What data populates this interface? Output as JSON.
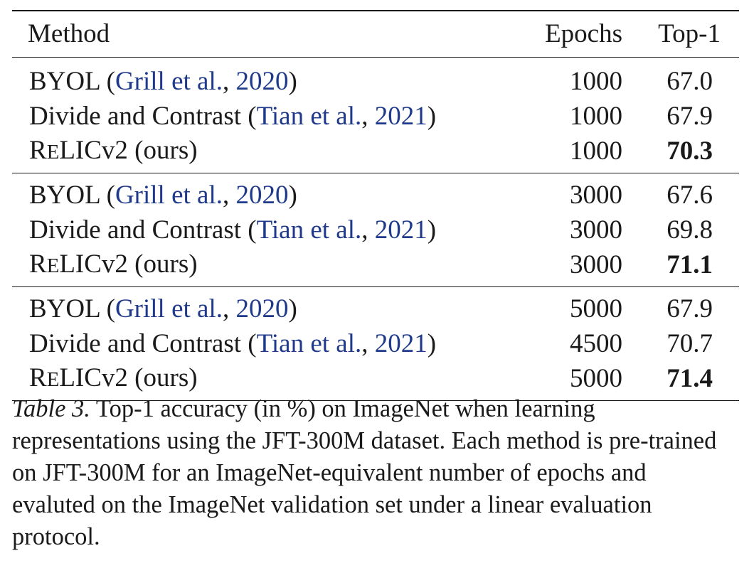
{
  "table": {
    "headers": {
      "method": "Method",
      "epochs": "Epochs",
      "top1": "Top-1"
    },
    "groups": [
      {
        "rows": [
          {
            "name": "BYOL",
            "open": " (",
            "cite_authors": "Grill et al.",
            "sep": ", ",
            "cite_year": "2020",
            "close": ")",
            "epochs": "1000",
            "top1": "67.0",
            "bold": false
          },
          {
            "name": "Divide and Contrast",
            "open": " (",
            "cite_authors": "Tian et al.",
            "sep": ", ",
            "cite_year": "2021",
            "close": ")",
            "epochs": "1000",
            "top1": "67.9",
            "bold": false
          },
          {
            "name_r": "R",
            "name_e": "E",
            "name_rest": "LICv2 (ours)",
            "epochs": "1000",
            "top1": "70.3",
            "bold": true
          }
        ]
      },
      {
        "rows": [
          {
            "name": "BYOL",
            "open": " (",
            "cite_authors": "Grill et al.",
            "sep": ", ",
            "cite_year": "2020",
            "close": ")",
            "epochs": "3000",
            "top1": "67.6",
            "bold": false
          },
          {
            "name": "Divide and Contrast",
            "open": " (",
            "cite_authors": "Tian et al.",
            "sep": ", ",
            "cite_year": "2021",
            "close": ")",
            "epochs": "3000",
            "top1": "69.8",
            "bold": false
          },
          {
            "name_r": "R",
            "name_e": "E",
            "name_rest": "LICv2 (ours)",
            "epochs": "3000",
            "top1": "71.1",
            "bold": true
          }
        ]
      },
      {
        "rows": [
          {
            "name": "BYOL",
            "open": " (",
            "cite_authors": "Grill et al.",
            "sep": ", ",
            "cite_year": "2020",
            "close": ")",
            "epochs": "5000",
            "top1": "67.9",
            "bold": false
          },
          {
            "name": "Divide and Contrast",
            "open": " (",
            "cite_authors": "Tian et al.",
            "sep": ", ",
            "cite_year": "2021",
            "close": ")",
            "epochs": "4500",
            "top1": "70.7",
            "bold": false
          },
          {
            "name_r": "R",
            "name_e": "E",
            "name_rest": "LICv2 (ours)",
            "epochs": "5000",
            "top1": "71.4",
            "bold": true
          }
        ]
      }
    ]
  },
  "caption": {
    "label": "Table 3.",
    "text": " Top-1 accuracy (in %) on ImageNet when learning representations using the JFT-300M dataset. Each method is pre-trained on JFT-300M for an ImageNet-equivalent number of epochs and evaluted on the ImageNet validation set under a linear evaluation protocol."
  },
  "colors": {
    "citation": "#1f3a8a",
    "text": "#1a1a1a"
  }
}
